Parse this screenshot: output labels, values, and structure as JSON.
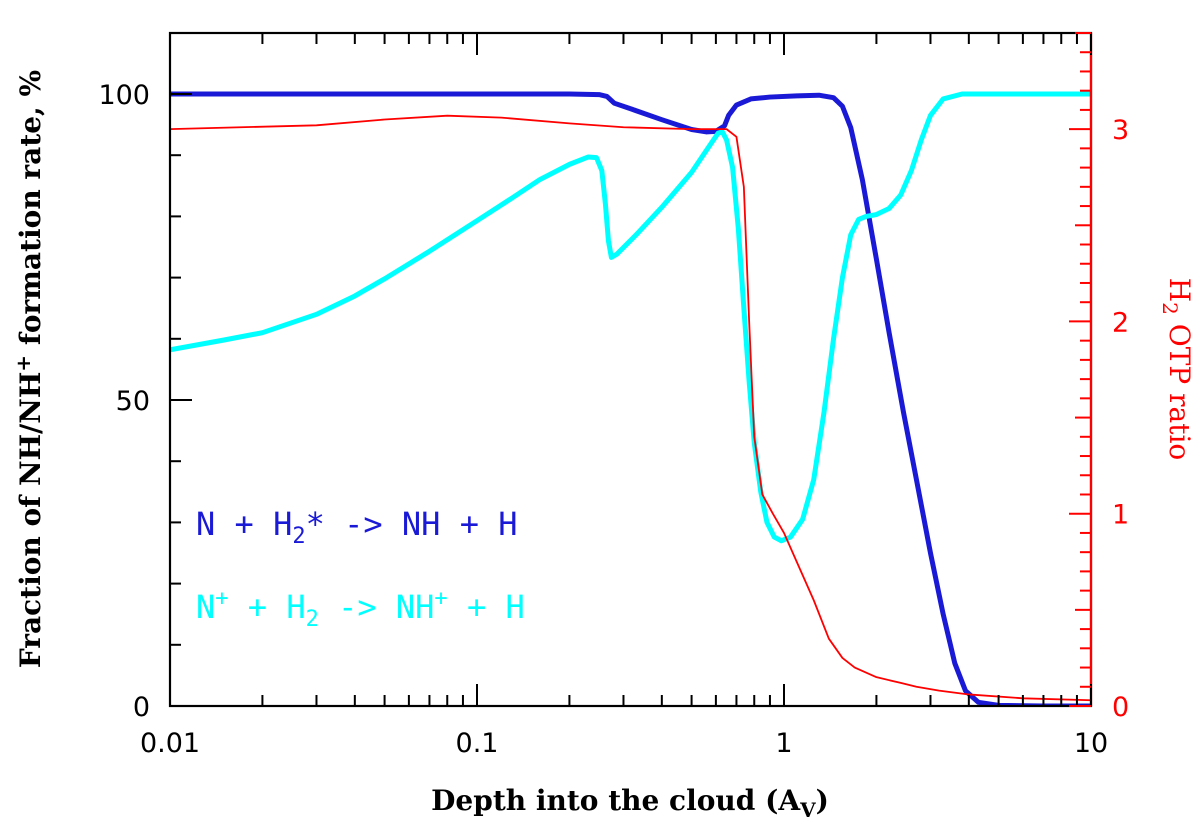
{
  "chart_data": {
    "type": "line",
    "x_scale": "log",
    "xlim": [
      0.01,
      10
    ],
    "ylim": [
      0,
      100
    ],
    "y2lim": [
      0,
      3.5
    ],
    "x_ticks": [
      {
        "value": 0.01,
        "label": "0.01"
      },
      {
        "value": 0.1,
        "label": "0.1"
      },
      {
        "value": 1,
        "label": "1"
      },
      {
        "value": 10,
        "label": "10"
      }
    ],
    "y_ticks": [
      {
        "value": 0,
        "label": "0"
      },
      {
        "value": 50,
        "label": "50"
      },
      {
        "value": 100,
        "label": "100"
      }
    ],
    "y2_ticks": [
      {
        "value": 0,
        "label": "0"
      },
      {
        "value": 1,
        "label": "1"
      },
      {
        "value": 2,
        "label": "2"
      },
      {
        "value": 3,
        "label": "3"
      }
    ],
    "xlabel": {
      "pre": "Depth into the cloud (A",
      "sub": "V",
      "post": ")"
    },
    "ylabel": {
      "pre": "Fraction of NH/NH",
      "sup": "+",
      "post": " formation rate, %"
    },
    "y2label": {
      "pre": "H",
      "sub": "2",
      "post": " OTP ratio"
    },
    "legend": [
      {
        "parts": [
          {
            "t": "N + H"
          },
          {
            "t": "2",
            "sub": true
          },
          {
            "t": "* -> NH + H"
          }
        ],
        "color": "#1a1ad6"
      },
      {
        "parts": [
          {
            "t": "N"
          },
          {
            "t": "+",
            "sup": true
          },
          {
            "t": " + H"
          },
          {
            "t": "2",
            "sub": true
          },
          {
            "t": " -> NH"
          },
          {
            "t": "+",
            "sup": true
          },
          {
            "t": " + H"
          }
        ],
        "color": "#00ffff"
      }
    ],
    "series": [
      {
        "color": "#1a1ad6",
        "axis": "left",
        "points": [
          [
            0.01,
            100
          ],
          [
            0.1,
            100
          ],
          [
            0.2,
            100
          ],
          [
            0.25,
            99.9
          ],
          [
            0.265,
            99.6
          ],
          [
            0.28,
            98.5
          ],
          [
            0.32,
            97.5
          ],
          [
            0.4,
            95.8
          ],
          [
            0.5,
            94.2
          ],
          [
            0.56,
            93.8
          ],
          [
            0.6,
            93.9
          ],
          [
            0.64,
            94.8
          ],
          [
            0.66,
            96.5
          ],
          [
            0.7,
            98.2
          ],
          [
            0.78,
            99.2
          ],
          [
            0.9,
            99.5
          ],
          [
            1.1,
            99.7
          ],
          [
            1.3,
            99.8
          ],
          [
            1.45,
            99.4
          ],
          [
            1.55,
            98
          ],
          [
            1.65,
            94.5
          ],
          [
            1.8,
            86
          ],
          [
            2.0,
            73
          ],
          [
            2.2,
            61
          ],
          [
            2.45,
            48
          ],
          [
            2.7,
            37
          ],
          [
            3.0,
            25
          ],
          [
            3.3,
            15
          ],
          [
            3.6,
            7
          ],
          [
            3.9,
            2.5
          ],
          [
            4.3,
            0.6
          ],
          [
            5,
            0.1
          ],
          [
            7,
            0
          ],
          [
            10,
            0
          ]
        ]
      },
      {
        "color": "#00ffff",
        "axis": "left",
        "points": [
          [
            0.01,
            58.2
          ],
          [
            0.015,
            59.8
          ],
          [
            0.02,
            61
          ],
          [
            0.03,
            64
          ],
          [
            0.04,
            67
          ],
          [
            0.05,
            69.8
          ],
          [
            0.07,
            74.3
          ],
          [
            0.1,
            79.3
          ],
          [
            0.13,
            83
          ],
          [
            0.16,
            86
          ],
          [
            0.2,
            88.5
          ],
          [
            0.23,
            89.7
          ],
          [
            0.245,
            89.6
          ],
          [
            0.255,
            87.5
          ],
          [
            0.262,
            82
          ],
          [
            0.268,
            76
          ],
          [
            0.274,
            73.3
          ],
          [
            0.285,
            73.8
          ],
          [
            0.33,
            77
          ],
          [
            0.4,
            81.5
          ],
          [
            0.5,
            87.2
          ],
          [
            0.58,
            92
          ],
          [
            0.61,
            93.6
          ],
          [
            0.63,
            93.8
          ],
          [
            0.65,
            92.5
          ],
          [
            0.68,
            88
          ],
          [
            0.71,
            78
          ],
          [
            0.74,
            65
          ],
          [
            0.77,
            53
          ],
          [
            0.8,
            43
          ],
          [
            0.84,
            35
          ],
          [
            0.88,
            30
          ],
          [
            0.93,
            27.6
          ],
          [
            0.98,
            27
          ],
          [
            1.05,
            27.6
          ],
          [
            1.15,
            30.5
          ],
          [
            1.25,
            37
          ],
          [
            1.35,
            48
          ],
          [
            1.45,
            60
          ],
          [
            1.55,
            70
          ],
          [
            1.65,
            77
          ],
          [
            1.75,
            79.5
          ],
          [
            1.85,
            80
          ],
          [
            2.0,
            80.3
          ],
          [
            2.2,
            81.3
          ],
          [
            2.4,
            83.5
          ],
          [
            2.6,
            87.5
          ],
          [
            2.8,
            92.5
          ],
          [
            3.0,
            96.5
          ],
          [
            3.3,
            99.2
          ],
          [
            3.8,
            100
          ],
          [
            5,
            100
          ],
          [
            10,
            100
          ]
        ]
      },
      {
        "color": "#ff0000",
        "axis": "right",
        "points": [
          [
            0.01,
            3.0
          ],
          [
            0.03,
            3.02
          ],
          [
            0.05,
            3.05
          ],
          [
            0.08,
            3.07
          ],
          [
            0.12,
            3.06
          ],
          [
            0.2,
            3.03
          ],
          [
            0.3,
            3.01
          ],
          [
            0.5,
            3.0
          ],
          [
            0.65,
            3.0
          ],
          [
            0.7,
            2.96
          ],
          [
            0.74,
            2.7
          ],
          [
            0.77,
            2.0
          ],
          [
            0.8,
            1.4
          ],
          [
            0.85,
            1.1
          ],
          [
            0.92,
            1.0
          ],
          [
            1.0,
            0.9
          ],
          [
            1.1,
            0.75
          ],
          [
            1.25,
            0.55
          ],
          [
            1.4,
            0.35
          ],
          [
            1.55,
            0.25
          ],
          [
            1.7,
            0.2
          ],
          [
            2.0,
            0.15
          ],
          [
            2.4,
            0.12
          ],
          [
            2.7,
            0.1
          ],
          [
            3.2,
            0.08
          ],
          [
            4,
            0.06
          ],
          [
            6,
            0.04
          ],
          [
            10,
            0.03
          ]
        ]
      }
    ]
  }
}
